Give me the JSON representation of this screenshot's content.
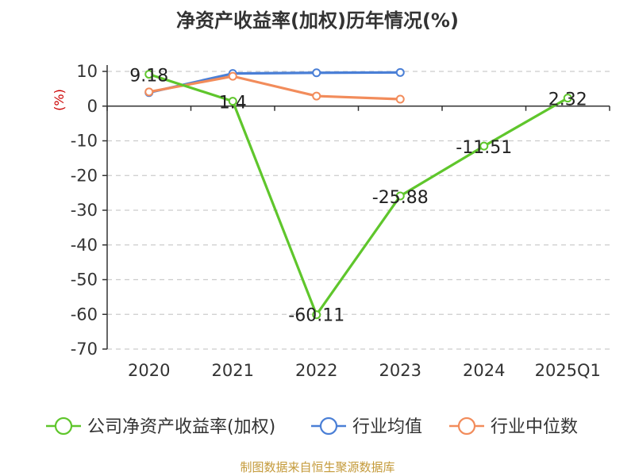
{
  "chart_data": {
    "type": "line",
    "title": "净资产收益率(加权)历年情况(%)",
    "ylabel": "(%)",
    "categories": [
      "2020",
      "2021",
      "2022",
      "2023",
      "2024",
      "2025Q1"
    ],
    "ylim": [
      -70,
      10
    ],
    "yticks": [
      10,
      0,
      -10,
      -20,
      -30,
      -40,
      -50,
      -60,
      -70
    ],
    "grid": true,
    "legend_position": "bottom",
    "series": [
      {
        "name": "公司净资产收益率(加权)",
        "color": "#5fc62c",
        "values": [
          9.18,
          1.4,
          -60.11,
          -25.88,
          -11.51,
          2.32
        ],
        "labels": [
          "9.18",
          "1.4",
          "-60.11",
          "-25.88",
          "-11.51",
          "2.32"
        ]
      },
      {
        "name": "行业均值",
        "color": "#4a7fd6",
        "values": [
          3.9,
          9.4,
          9.6,
          9.7,
          null,
          null
        ]
      },
      {
        "name": "行业中位数",
        "color": "#f28c5b",
        "values": [
          4.1,
          8.6,
          2.9,
          2.0,
          null,
          null
        ]
      }
    ]
  },
  "footer": "制图数据来自恒生聚源数据库"
}
